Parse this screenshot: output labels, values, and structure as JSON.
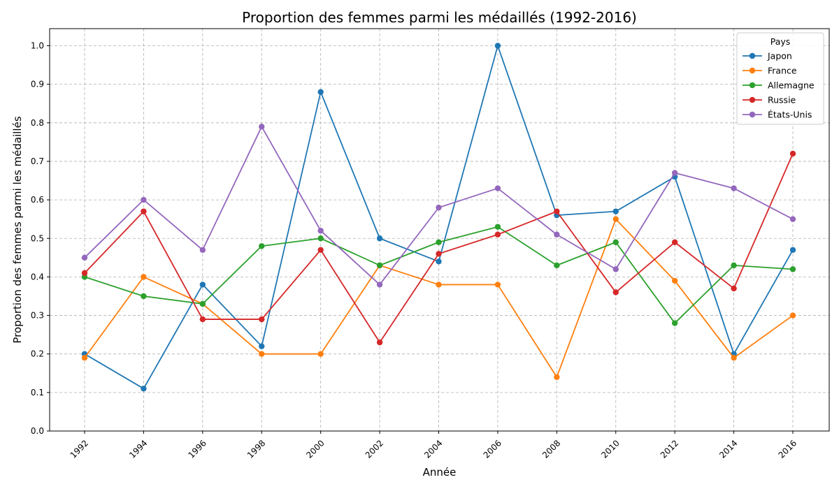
{
  "chart_data": {
    "type": "line",
    "title": "Proportion des femmes parmi les médaillés (1992-2016)",
    "xlabel": "Année",
    "ylabel": "Proportion des femmes parmi les médaillés",
    "x": [
      1992,
      1994,
      1996,
      1998,
      2000,
      2002,
      2004,
      2006,
      2008,
      2010,
      2012,
      2014,
      2016
    ],
    "x_tick_labels": [
      "1992",
      "1994",
      "1996",
      "1998",
      "2000",
      "2002",
      "2004",
      "2006",
      "2008",
      "2010",
      "2012",
      "2014",
      "2016"
    ],
    "ylim": [
      0.0,
      1.0
    ],
    "y_ticks": [
      0.0,
      0.1,
      0.2,
      0.3,
      0.4,
      0.5,
      0.6,
      0.7,
      0.8,
      0.9,
      1.0
    ],
    "y_tick_labels": [
      "0.0",
      "0.1",
      "0.2",
      "0.3",
      "0.4",
      "0.5",
      "0.6",
      "0.7",
      "0.8",
      "0.9",
      "1.0"
    ],
    "grid": true,
    "legend": {
      "title": "Pays",
      "placement": "top-right"
    },
    "series": [
      {
        "name": "Japon",
        "color": "#1f77b4",
        "values": [
          0.2,
          0.11,
          0.38,
          0.22,
          0.88,
          0.5,
          0.44,
          1.0,
          0.56,
          0.57,
          0.66,
          0.2,
          0.47
        ]
      },
      {
        "name": "France",
        "color": "#ff7f0e",
        "values": [
          0.19,
          0.4,
          0.33,
          0.2,
          0.2,
          0.43,
          0.38,
          0.38,
          0.14,
          0.55,
          0.39,
          0.19,
          0.3
        ]
      },
      {
        "name": "Allemagne",
        "color": "#2ca02c",
        "values": [
          0.4,
          0.35,
          0.33,
          0.48,
          0.5,
          0.43,
          0.49,
          0.53,
          0.43,
          0.49,
          0.28,
          0.43,
          0.42
        ]
      },
      {
        "name": "Russie",
        "color": "#d62728",
        "values": [
          0.41,
          0.57,
          0.29,
          0.29,
          0.47,
          0.23,
          0.46,
          0.51,
          0.57,
          0.36,
          0.49,
          0.37,
          0.72
        ]
      },
      {
        "name": "États-Unis",
        "color": "#9467bd",
        "values": [
          0.45,
          0.6,
          0.47,
          0.79,
          0.52,
          0.38,
          0.58,
          0.63,
          0.51,
          0.42,
          0.67,
          0.63,
          0.55
        ]
      }
    ]
  }
}
